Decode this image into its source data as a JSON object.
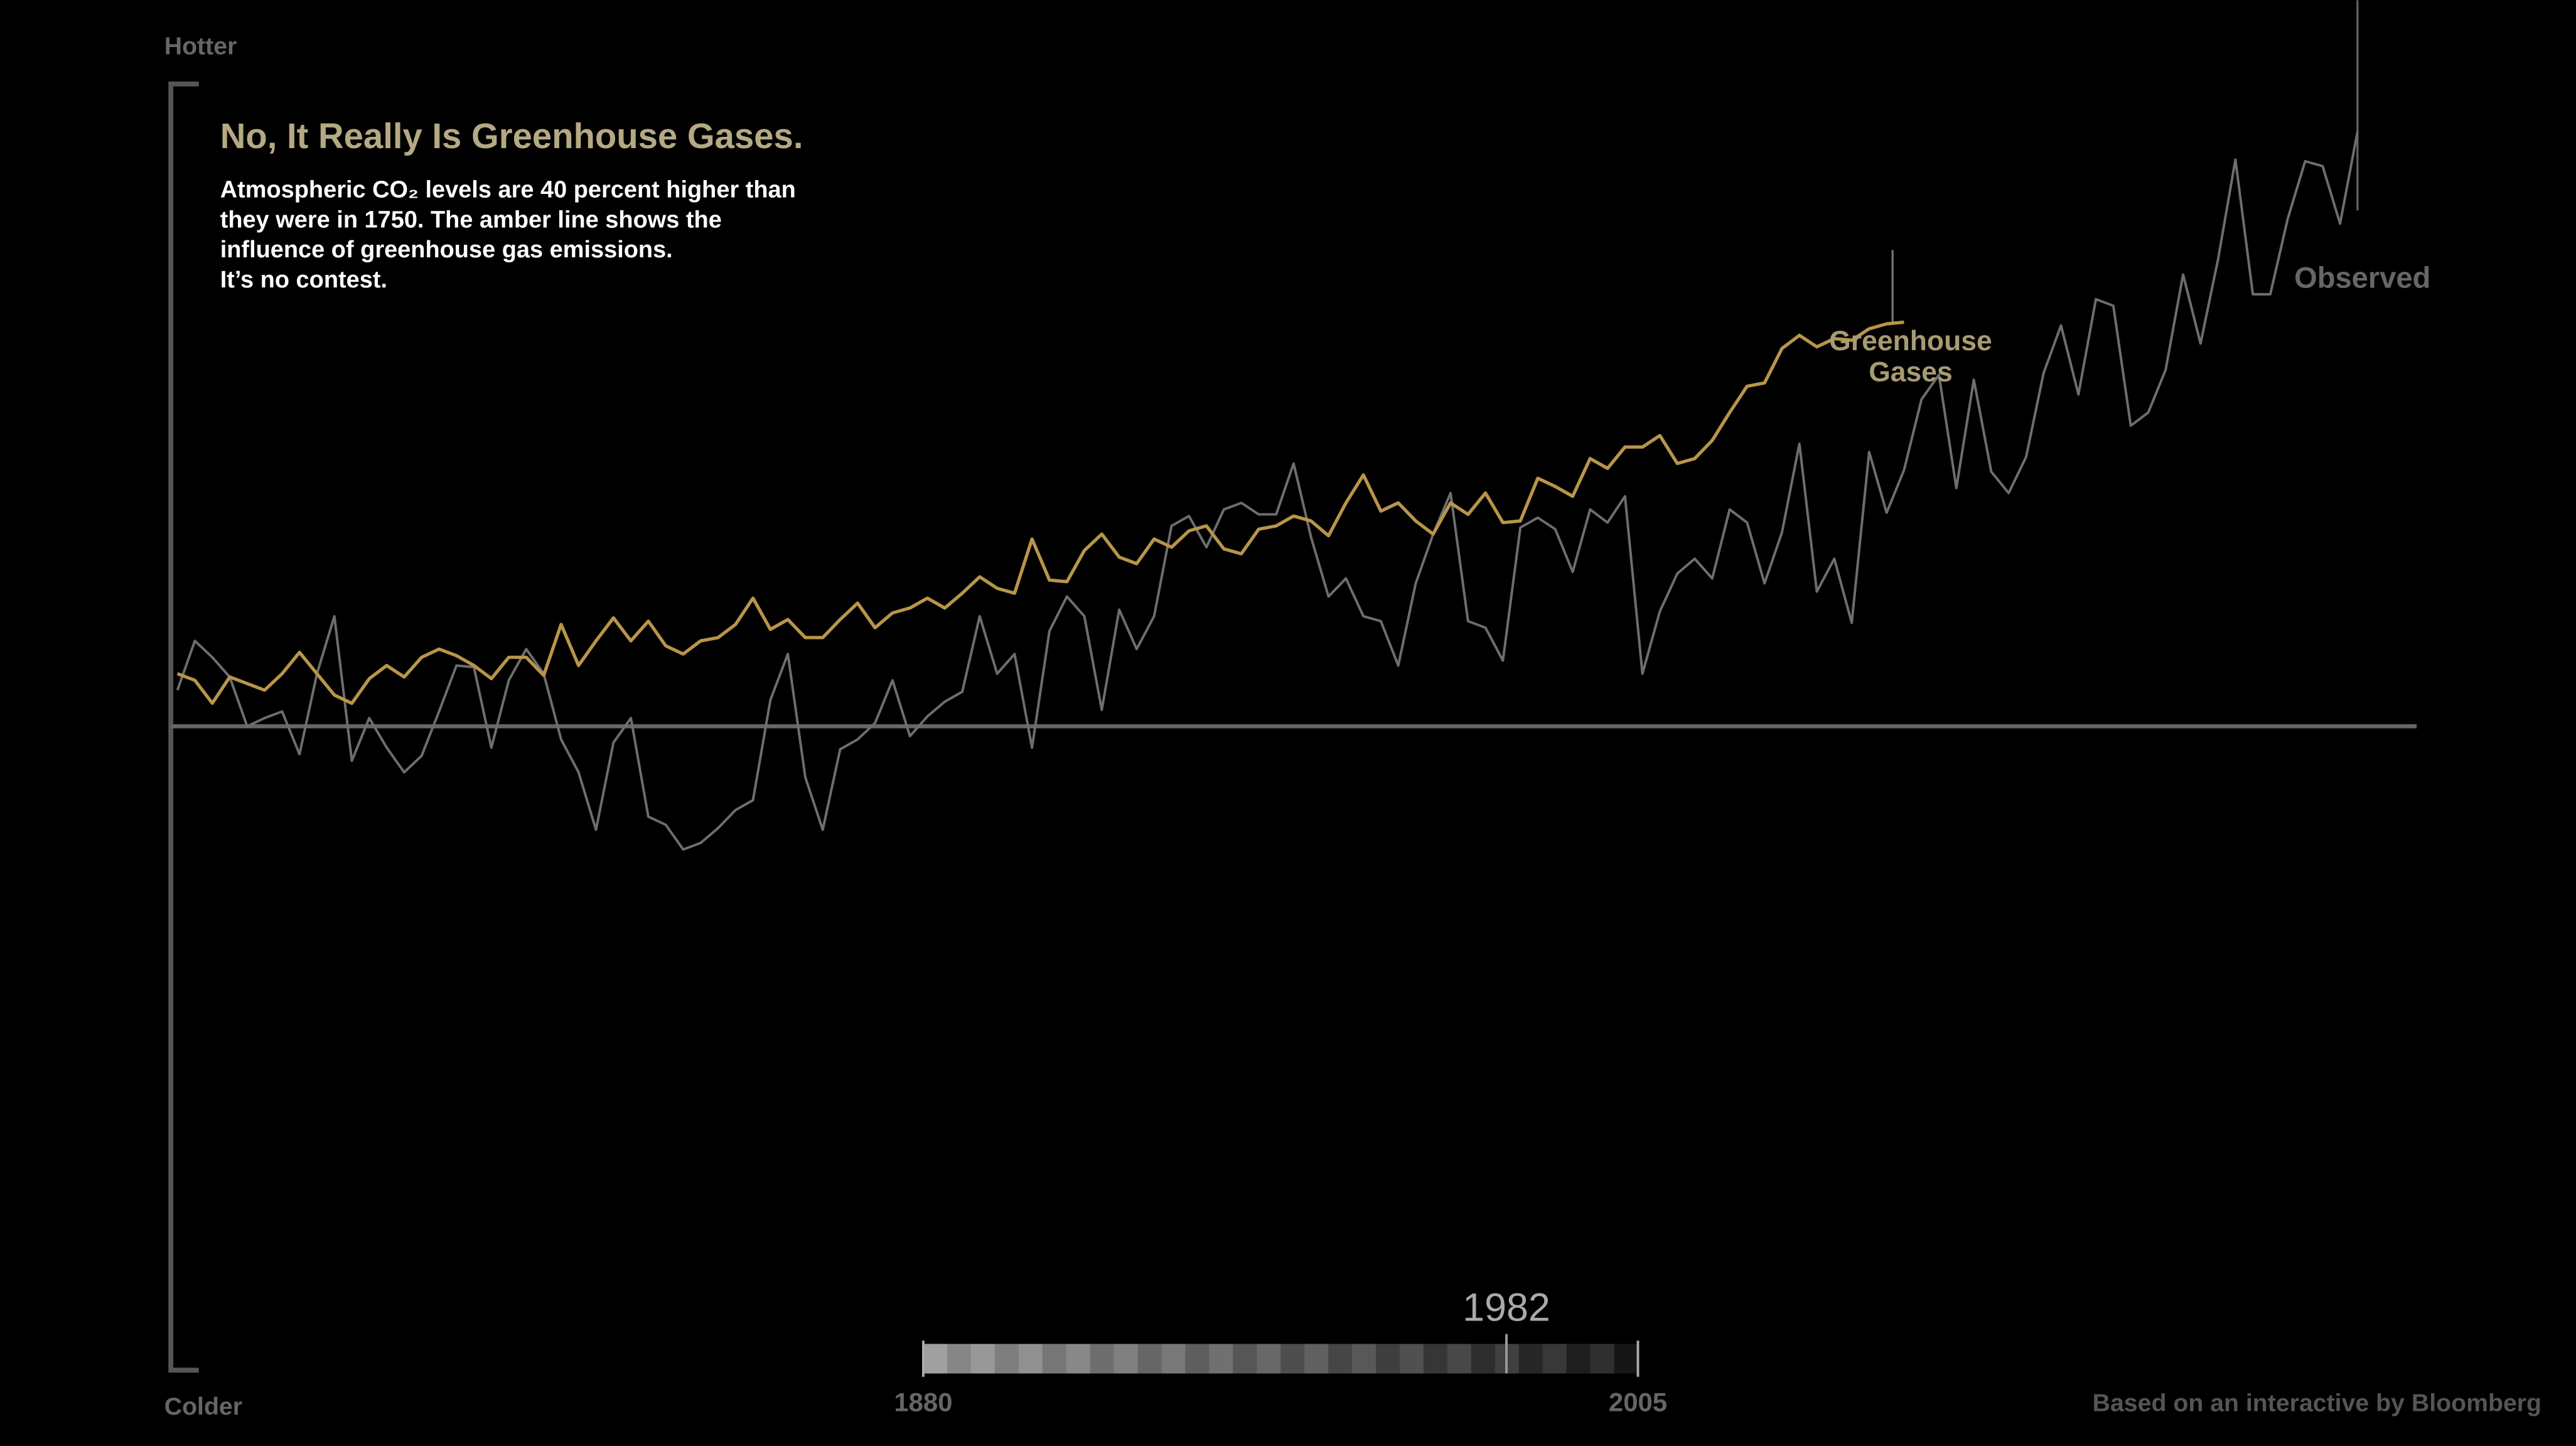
{
  "chart_data": {
    "type": "line",
    "title": "No, It Really Is Greenhouse Gases.",
    "subtitle": [
      "Atmospheric CO₂ levels are 40 percent higher than",
      "they were in 1750.  The amber line shows the",
      "influence of greenhouse gas emissions.",
      "It’s no contest."
    ],
    "y_top_label": "Hotter",
    "y_bottom_label": "Colder",
    "x": [
      1880,
      1881,
      1882,
      1883,
      1884,
      1885,
      1886,
      1887,
      1888,
      1889,
      1890,
      1891,
      1892,
      1893,
      1894,
      1895,
      1896,
      1897,
      1898,
      1899,
      1900,
      1901,
      1902,
      1903,
      1904,
      1905,
      1906,
      1907,
      1908,
      1909,
      1910,
      1911,
      1912,
      1913,
      1914,
      1915,
      1916,
      1917,
      1918,
      1919,
      1920,
      1921,
      1922,
      1923,
      1924,
      1925,
      1926,
      1927,
      1928,
      1929,
      1930,
      1931,
      1932,
      1933,
      1934,
      1935,
      1936,
      1937,
      1938,
      1939,
      1940,
      1941,
      1942,
      1943,
      1944,
      1945,
      1946,
      1947,
      1948,
      1949,
      1950,
      1951,
      1952,
      1953,
      1954,
      1955,
      1956,
      1957,
      1958,
      1959,
      1960,
      1961,
      1962,
      1963,
      1964,
      1965,
      1966,
      1967,
      1968,
      1969,
      1970,
      1971,
      1972,
      1973,
      1974,
      1975,
      1976,
      1977,
      1978,
      1979,
      1980,
      1981,
      1982,
      1983,
      1984,
      1985,
      1986,
      1987,
      1988,
      1989,
      1990,
      1991,
      1992,
      1993,
      1994,
      1995,
      1996,
      1997,
      1998,
      1999,
      2000,
      2001,
      2002,
      2003,
      2004,
      2005
    ],
    "xlim": [
      1880,
      2005
    ],
    "ylim": [
      -3.92,
      3.92
    ],
    "yticks": [
      0
    ],
    "series": [
      {
        "name": "Observed",
        "color": "#6e6e6e",
        "values": [
          0.22,
          0.52,
          0.42,
          0.3,
          0,
          0.05,
          0.09,
          -0.17,
          0.32,
          0.67,
          -0.21,
          0.05,
          -0.13,
          -0.28,
          -0.18,
          0.09,
          0.37,
          0.36,
          -0.13,
          0.28,
          0.47,
          0.32,
          -0.08,
          -0.28,
          -0.63,
          -0.1,
          0.05,
          -0.55,
          -0.6,
          -0.75,
          -0.71,
          -0.62,
          -0.51,
          -0.45,
          0.16,
          0.44,
          -0.31,
          -0.63,
          -0.14,
          -0.08,
          0.02,
          0.28,
          -0.06,
          0.06,
          0.15,
          0.21,
          0.67,
          0.32,
          0.44,
          -0.13,
          0.58,
          0.79,
          0.67,
          0.1,
          0.71,
          0.47,
          0.67,
          1.22,
          1.28,
          1.09,
          1.32,
          1.36,
          1.29,
          1.29,
          1.6,
          1.15,
          0.79,
          0.9,
          0.67,
          0.64,
          0.37,
          0.87,
          1.17,
          1.42,
          0.64,
          0.6,
          0.4,
          1.21,
          1.27,
          1.2,
          0.94,
          1.32,
          1.24,
          1.4,
          0.32,
          0.7,
          0.93,
          1.02,
          0.9,
          1.32,
          1.24,
          0.87,
          1.18,
          1.72,
          0.82,
          1.02,
          0.63,
          1.67,
          1.3,
          1.56,
          1.99,
          2.14,
          1.45,
          2.11,
          1.55,
          1.42,
          1.64,
          2.15,
          2.44,
          2.02,
          2.6,
          2.56,
          1.83,
          1.91,
          2.17,
          2.75,
          2.33,
          2.84,
          3.45,
          2.63,
          2.63,
          3.09,
          3.44,
          3.41,
          3.06,
          3.62
        ]
      },
      {
        "name": "Greenhouse Gases",
        "color": "#b8954a",
        "values": [
          0.32,
          0.28,
          0.14,
          0.3,
          0.26,
          0.22,
          0.32,
          0.45,
          0.32,
          0.19,
          0.14,
          0.29,
          0.37,
          0.3,
          0.42,
          0.47,
          0.43,
          0.37,
          0.29,
          0.42,
          0.42,
          0.31,
          0.62,
          0.37,
          0.52,
          0.66,
          0.52,
          0.64,
          0.49,
          0.44,
          0.52,
          0.54,
          0.62,
          0.78,
          0.59,
          0.65,
          0.54,
          0.54,
          0.65,
          0.75,
          0.6,
          0.69,
          0.72,
          0.78,
          0.72,
          0.81,
          0.91,
          0.84,
          0.81,
          1.14,
          0.89,
          0.88,
          1.07,
          1.17,
          1.03,
          0.99,
          1.14,
          1.09,
          1.19,
          1.22,
          1.08,
          1.05,
          1.2,
          1.22,
          1.28,
          1.25,
          1.16,
          1.36,
          1.53,
          1.31,
          1.36,
          1.25,
          1.17,
          1.36,
          1.29,
          1.42,
          1.24,
          1.25,
          1.51,
          1.46,
          1.4,
          1.63,
          1.57,
          1.7,
          1.7,
          1.77,
          1.6,
          1.63,
          1.74,
          1.91,
          2.07,
          2.09,
          2.3,
          2.38,
          2.31,
          2.36,
          2.35,
          2.42,
          2.45,
          2.46,
          null,
          null,
          null,
          null,
          null,
          null,
          null,
          null,
          null,
          null,
          null,
          null,
          null,
          null,
          null,
          null,
          null,
          null,
          null,
          null,
          null,
          null,
          null,
          null,
          null,
          null
        ]
      }
    ],
    "timeline": {
      "min": 1880,
      "max": 2005,
      "value": 1982
    },
    "credit": "Based on an interactive by Bloomberg"
  }
}
